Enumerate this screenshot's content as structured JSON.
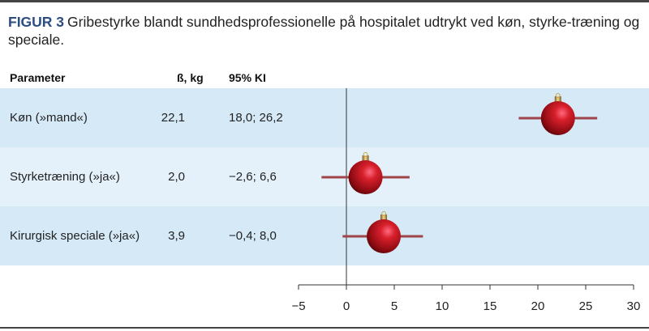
{
  "caption": {
    "label": "FIGUR 3",
    "text": "Gribestyrke blandt sundhedsprofessionelle på hospitalet udtrykt ved køn, styrke-træning og speciale."
  },
  "chart_data": {
    "type": "forest",
    "columns": [
      "Parameter",
      "ß, kg",
      "95% KI"
    ],
    "rows": [
      {
        "parameter": "Køn (»mand«)",
        "beta": "22,1",
        "ci_text": "18,0; 26,2",
        "estimate": 22.1,
        "lower": 18.0,
        "upper": 26.2
      },
      {
        "parameter": "Styrketræning (»ja«)",
        "beta": "2,0",
        "ci_text": "−2,6; 6,6",
        "estimate": 2.0,
        "lower": -2.6,
        "upper": 6.6
      },
      {
        "parameter": "Kirurgisk speciale (»ja«)",
        "beta": "3,9",
        "ci_text": "−0,4; 8,0",
        "estimate": 3.9,
        "lower": -0.4,
        "upper": 8.0
      }
    ],
    "xlim": [
      -5,
      30
    ],
    "xticks": [
      -5,
      0,
      5,
      10,
      15,
      20,
      25,
      30
    ],
    "xtick_labels": [
      "−5",
      "0",
      "5",
      "10",
      "15",
      "20",
      "25",
      "30"
    ],
    "marker": "christmas-ornament",
    "colors": {
      "row_dark": "#d5e9f7",
      "row_light": "#e4f1fb",
      "ci_line": "#a0454a",
      "marker": "#c0151d",
      "caption_label": "#2b4d82"
    }
  }
}
